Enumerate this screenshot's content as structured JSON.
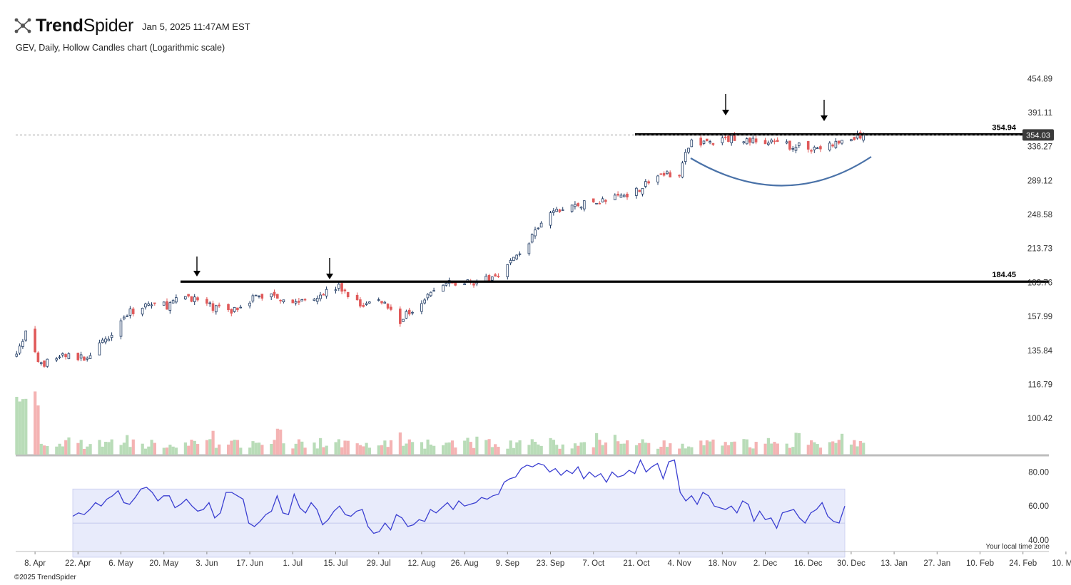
{
  "header": {
    "brand_bold": "Trend",
    "brand_light": "Spider",
    "timestamp": "Jan 5, 2025 11:47AM EST",
    "subtitle": "GEV, Daily, Hollow Candles chart (Logarithmic scale)"
  },
  "footer": {
    "copyright": "©2025 TrendSpider",
    "timezone": "Your local time zone"
  },
  "colors": {
    "up": "#1f3a63",
    "down": "#e05a5a",
    "vol_up": "#b9dcb8",
    "vol_down": "#f4b3b3",
    "rsi_line": "#3b3fd1",
    "rsi_band": "#e8ebfb",
    "arc": "#4a72a8"
  },
  "chart_data": {
    "type": "candlestick",
    "symbol": "GEV",
    "interval": "Daily",
    "scale": "logarithmic",
    "ylim": [
      94,
      482
    ],
    "y_ticks": [
      "454.89",
      "391.11",
      "336.27",
      "289.12",
      "248.58",
      "213.73",
      "183.76",
      "157.99",
      "135.84",
      "116.79",
      "100.42"
    ],
    "x_ticks": [
      "8. Apr",
      "22. Apr",
      "6. May",
      "20. May",
      "3. Jun",
      "17. Jun",
      "1. Jul",
      "15. Jul",
      "29. Jul",
      "12. Aug",
      "26. Aug",
      "9. Sep",
      "23. Sep",
      "7. Oct",
      "21. Oct",
      "4. Nov",
      "18. Nov",
      "2. Dec",
      "16. Dec",
      "30. Dec",
      "13. Jan",
      "27. Jan",
      "10. Feb",
      "24. Feb",
      "10. Mar"
    ],
    "last_price": "354.03",
    "resistance_lines": [
      {
        "label": "354.94",
        "value": 354.94,
        "from": "24. Oct"
      },
      {
        "label": "184.45",
        "value": 184.45,
        "from": "22. May"
      }
    ],
    "price_path": [
      [
        "2024-04-02",
        136
      ],
      [
        "2024-04-05",
        146
      ],
      [
        "2024-04-10",
        127
      ],
      [
        "2024-04-17",
        133
      ],
      [
        "2024-04-24",
        131
      ],
      [
        "2024-04-30",
        140
      ],
      [
        "2024-05-07",
        158
      ],
      [
        "2024-05-14",
        167
      ],
      [
        "2024-05-21",
        166
      ],
      [
        "2024-05-28",
        173
      ],
      [
        "2024-06-04",
        165
      ],
      [
        "2024-06-11",
        162
      ],
      [
        "2024-06-18",
        172
      ],
      [
        "2024-06-25",
        174
      ],
      [
        "2024-07-02",
        168
      ],
      [
        "2024-07-09",
        174
      ],
      [
        "2024-07-16",
        180
      ],
      [
        "2024-07-23",
        166
      ],
      [
        "2024-07-30",
        170
      ],
      [
        "2024-08-05",
        155
      ],
      [
        "2024-08-12",
        170
      ],
      [
        "2024-08-19",
        182
      ],
      [
        "2024-08-26",
        184
      ],
      [
        "2024-09-03",
        186
      ],
      [
        "2024-09-09",
        198
      ],
      [
        "2024-09-16",
        220
      ],
      [
        "2024-09-23",
        250
      ],
      [
        "2024-09-30",
        258
      ],
      [
        "2024-10-07",
        262
      ],
      [
        "2024-10-14",
        268
      ],
      [
        "2024-10-21",
        277
      ],
      [
        "2024-10-28",
        295
      ],
      [
        "2024-11-04",
        300
      ],
      [
        "2024-11-08",
        345
      ],
      [
        "2024-11-15",
        342
      ],
      [
        "2024-11-22",
        350
      ],
      [
        "2024-11-29",
        344
      ],
      [
        "2024-12-06",
        340
      ],
      [
        "2024-12-13",
        336
      ],
      [
        "2024-12-20",
        334
      ],
      [
        "2024-12-27",
        343
      ],
      [
        "2025-01-03",
        354.03
      ]
    ],
    "rsi": {
      "ylim": [
        35,
        86
      ],
      "y_ticks": [
        "80.00",
        "60.00",
        "40.00"
      ],
      "band": [
        30,
        70
      ],
      "values": [
        54,
        56,
        55,
        58,
        62,
        60,
        64,
        66,
        69,
        62,
        61,
        65,
        70,
        71,
        68,
        63,
        66,
        66,
        59,
        61,
        64,
        60,
        57,
        58,
        62,
        53,
        56,
        68,
        68,
        66,
        64,
        50,
        48,
        51,
        55,
        57,
        66,
        56,
        55,
        67,
        59,
        56,
        62,
        58,
        49,
        52,
        57,
        60,
        55,
        54,
        57,
        58,
        48,
        44,
        45,
        50,
        46,
        55,
        53,
        48,
        49,
        52,
        51,
        58,
        56,
        59,
        62,
        58,
        63,
        60,
        61,
        62,
        65,
        64,
        66,
        67,
        74,
        76,
        77,
        82,
        84,
        83,
        85,
        84,
        80,
        82,
        78,
        81,
        79,
        83,
        76,
        80,
        77,
        79,
        74,
        80,
        77,
        78,
        81,
        79,
        87,
        80,
        83,
        85,
        76,
        86,
        87,
        68,
        63,
        66,
        61,
        68,
        66,
        60,
        59,
        58,
        60,
        56,
        63,
        61,
        51,
        57,
        52,
        53,
        47,
        56,
        57,
        58,
        53,
        50,
        56,
        58,
        62,
        54,
        51,
        50,
        60
      ]
    }
  }
}
